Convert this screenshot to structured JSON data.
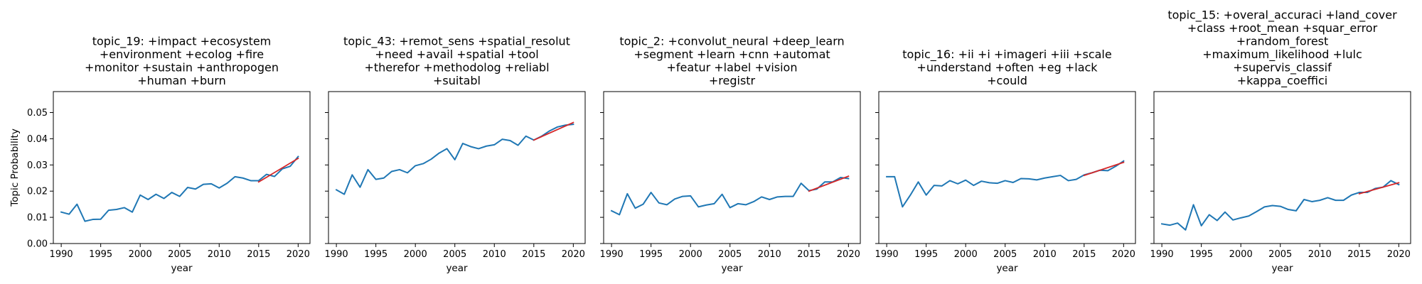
{
  "chart_data": [
    {
      "type": "line",
      "title_lines": [
        "topic_19: +impact +ecosystem",
        "+environment +ecolog +fire",
        "+monitor +sustain +anthropogen",
        "+human +burn"
      ],
      "xlabel": "year",
      "ylabel": "Topic Probability",
      "xlim": [
        1989,
        2021.5
      ],
      "ylim": [
        0,
        0.058
      ],
      "x_ticks": [
        1990,
        1995,
        2000,
        2005,
        2010,
        2015,
        2020
      ],
      "y_ticks": [
        0.0,
        0.01,
        0.02,
        0.03,
        0.04,
        0.05
      ],
      "x_tick_labels": [
        "1990",
        "1995",
        "2000",
        "2005",
        "2010",
        "2015",
        "2020"
      ],
      "y_tick_labels": [
        "0.00",
        "0.01",
        "0.02",
        "0.03",
        "0.04",
        "0.05"
      ],
      "series": [
        {
          "color": "#1f77b4",
          "x": [
            1990,
            1991,
            1992,
            1993,
            1994,
            1995,
            1996,
            1997,
            1998,
            1999,
            2000,
            2001,
            2002,
            2003,
            2004,
            2005,
            2006,
            2007,
            2008,
            2009,
            2010,
            2011,
            2012,
            2013,
            2014,
            2015,
            2016,
            2017,
            2018,
            2019,
            2020
          ],
          "y": [
            0.012,
            0.0112,
            0.015,
            0.0085,
            0.0092,
            0.0093,
            0.0127,
            0.013,
            0.0137,
            0.012,
            0.0185,
            0.0168,
            0.0188,
            0.0172,
            0.0195,
            0.018,
            0.0214,
            0.0208,
            0.0226,
            0.0228,
            0.0212,
            0.023,
            0.0255,
            0.025,
            0.024,
            0.024,
            0.0264,
            0.0256,
            0.0285,
            0.0295,
            0.0332
          ]
        },
        {
          "color": "#d62728",
          "x": [
            2015,
            2020
          ],
          "y": [
            0.0235,
            0.0325
          ]
        }
      ]
    },
    {
      "type": "line",
      "title_lines": [
        "topic_43: +remot_sens +spatial_resolut",
        "+need +avail +spatial +tool",
        "+therefor +methodolog +reliabl",
        "+suitabl"
      ],
      "xlabel": "year",
      "ylabel": "",
      "xlim": [
        1989,
        2021.5
      ],
      "ylim": [
        0,
        0.058
      ],
      "x_ticks": [
        1990,
        1995,
        2000,
        2005,
        2010,
        2015,
        2020
      ],
      "y_ticks": [
        0.0,
        0.01,
        0.02,
        0.03,
        0.04,
        0.05
      ],
      "x_tick_labels": [
        "1990",
        "1995",
        "2000",
        "2005",
        "2010",
        "2015",
        "2020"
      ],
      "y_tick_labels": [],
      "series": [
        {
          "color": "#1f77b4",
          "x": [
            1990,
            1991,
            1992,
            1993,
            1994,
            1995,
            1996,
            1997,
            1998,
            1999,
            2000,
            2001,
            2002,
            2003,
            2004,
            2005,
            2006,
            2007,
            2008,
            2009,
            2010,
            2011,
            2012,
            2013,
            2014,
            2015,
            2016,
            2017,
            2018,
            2019,
            2020
          ],
          "y": [
            0.0205,
            0.0188,
            0.0262,
            0.0215,
            0.0282,
            0.0245,
            0.025,
            0.0275,
            0.0282,
            0.027,
            0.0297,
            0.0305,
            0.0322,
            0.0345,
            0.0362,
            0.032,
            0.0382,
            0.037,
            0.0362,
            0.0372,
            0.0377,
            0.0398,
            0.0393,
            0.0375,
            0.041,
            0.0395,
            0.041,
            0.043,
            0.0445,
            0.0452,
            0.0455
          ]
        },
        {
          "color": "#d62728",
          "x": [
            2015,
            2020
          ],
          "y": [
            0.0395,
            0.0462
          ]
        }
      ]
    },
    {
      "type": "line",
      "title_lines": [
        "topic_2: +convolut_neural +deep_learn",
        "+segment +learn +cnn +automat",
        "+featur +label +vision",
        "+registr"
      ],
      "xlabel": "year",
      "ylabel": "",
      "xlim": [
        1989,
        2021.5
      ],
      "ylim": [
        0,
        0.058
      ],
      "x_ticks": [
        1990,
        1995,
        2000,
        2005,
        2010,
        2015,
        2020
      ],
      "y_ticks": [
        0.0,
        0.01,
        0.02,
        0.03,
        0.04,
        0.05
      ],
      "x_tick_labels": [
        "1990",
        "1995",
        "2000",
        "2005",
        "2010",
        "2015",
        "2020"
      ],
      "y_tick_labels": [],
      "series": [
        {
          "color": "#1f77b4",
          "x": [
            1990,
            1991,
            1992,
            1993,
            1994,
            1995,
            1996,
            1997,
            1998,
            1999,
            2000,
            2001,
            2002,
            2003,
            2004,
            2005,
            2006,
            2007,
            2008,
            2009,
            2010,
            2011,
            2012,
            2013,
            2014,
            2015,
            2016,
            2017,
            2018,
            2019,
            2020
          ],
          "y": [
            0.0125,
            0.011,
            0.019,
            0.0135,
            0.015,
            0.0195,
            0.0155,
            0.0148,
            0.017,
            0.018,
            0.0182,
            0.014,
            0.0147,
            0.0152,
            0.0188,
            0.0137,
            0.0152,
            0.0148,
            0.016,
            0.0178,
            0.0168,
            0.0178,
            0.018,
            0.018,
            0.023,
            0.0202,
            0.0208,
            0.0235,
            0.0235,
            0.0252,
            0.0248
          ]
        },
        {
          "color": "#d62728",
          "x": [
            2015,
            2020
          ],
          "y": [
            0.02,
            0.0257
          ]
        }
      ]
    },
    {
      "type": "line",
      "title_lines": [
        "topic_16: +ii +i +imageri +iii +scale",
        "+understand +often +eg +lack",
        "+could"
      ],
      "xlabel": "year",
      "ylabel": "",
      "xlim": [
        1989,
        2021.5
      ],
      "ylim": [
        0,
        0.058
      ],
      "x_ticks": [
        1990,
        1995,
        2000,
        2005,
        2010,
        2015,
        2020
      ],
      "y_ticks": [
        0.0,
        0.01,
        0.02,
        0.03,
        0.04,
        0.05
      ],
      "x_tick_labels": [
        "1990",
        "1995",
        "2000",
        "2005",
        "2010",
        "2015",
        "2020"
      ],
      "y_tick_labels": [],
      "series": [
        {
          "color": "#1f77b4",
          "x": [
            1990,
            1991,
            1992,
            1993,
            1994,
            1995,
            1996,
            1997,
            1998,
            1999,
            2000,
            2001,
            2002,
            2003,
            2004,
            2005,
            2006,
            2007,
            2008,
            2009,
            2010,
            2011,
            2012,
            2013,
            2014,
            2015,
            2016,
            2017,
            2018,
            2019,
            2020
          ],
          "y": [
            0.0255,
            0.0255,
            0.014,
            0.0185,
            0.0235,
            0.0185,
            0.0222,
            0.022,
            0.024,
            0.0228,
            0.0242,
            0.0222,
            0.0238,
            0.0232,
            0.023,
            0.024,
            0.0233,
            0.0248,
            0.0247,
            0.0243,
            0.025,
            0.0255,
            0.026,
            0.024,
            0.0245,
            0.0262,
            0.027,
            0.028,
            0.0278,
            0.0295,
            0.0315
          ]
        },
        {
          "color": "#d62728",
          "x": [
            2015,
            2020
          ],
          "y": [
            0.026,
            0.031
          ]
        }
      ]
    },
    {
      "type": "line",
      "title_lines": [
        "topic_15: +overal_accuraci +land_cover",
        "+class +root_mean +squar_error",
        "+random_forest",
        "+maximum_likelihood +lulc",
        "+supervis_classif",
        "+kappa_coeffici"
      ],
      "xlabel": "year",
      "ylabel": "",
      "xlim": [
        1989,
        2021.5
      ],
      "ylim": [
        0,
        0.058
      ],
      "x_ticks": [
        1990,
        1995,
        2000,
        2005,
        2010,
        2015,
        2020
      ],
      "y_ticks": [
        0.0,
        0.01,
        0.02,
        0.03,
        0.04,
        0.05
      ],
      "x_tick_labels": [
        "1990",
        "1995",
        "2000",
        "2005",
        "2010",
        "2015",
        "2020"
      ],
      "y_tick_labels": [],
      "series": [
        {
          "color": "#1f77b4",
          "x": [
            1990,
            1991,
            1992,
            1993,
            1994,
            1995,
            1996,
            1997,
            1998,
            1999,
            2000,
            2001,
            2002,
            2003,
            2004,
            2005,
            2006,
            2007,
            2008,
            2009,
            2010,
            2011,
            2012,
            2013,
            2014,
            2015,
            2016,
            2017,
            2018,
            2019,
            2020
          ],
          "y": [
            0.0075,
            0.007,
            0.0078,
            0.0052,
            0.0148,
            0.0068,
            0.011,
            0.0088,
            0.012,
            0.009,
            0.0098,
            0.0105,
            0.0122,
            0.014,
            0.0145,
            0.0142,
            0.013,
            0.0125,
            0.0168,
            0.016,
            0.0165,
            0.0175,
            0.0165,
            0.0165,
            0.0185,
            0.0195,
            0.0195,
            0.021,
            0.0215,
            0.024,
            0.0225
          ]
        },
        {
          "color": "#d62728",
          "x": [
            2015,
            2020
          ],
          "y": [
            0.019,
            0.0232
          ]
        }
      ]
    }
  ]
}
